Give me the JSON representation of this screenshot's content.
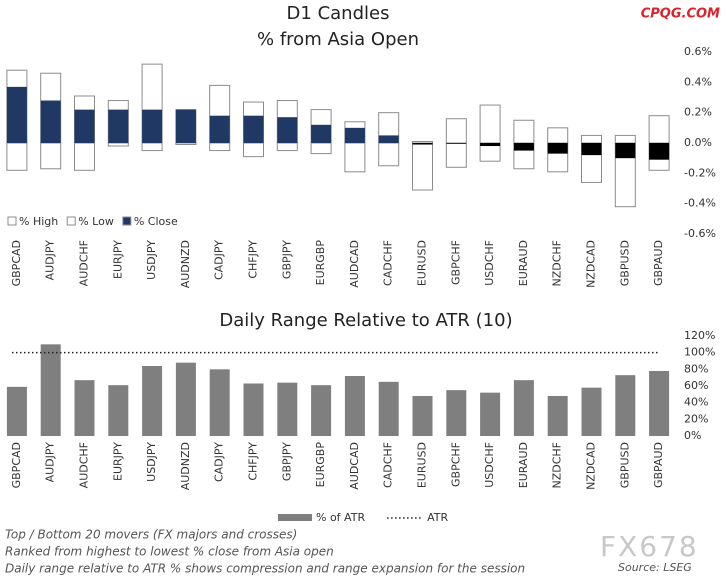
{
  "chart_data": [
    {
      "type": "candle",
      "title": "D1 Candles",
      "subtitle": "% from Asia Open",
      "categories": [
        "GBPCAD",
        "AUDJPY",
        "AUDCHF",
        "EURJPY",
        "USDJPY",
        "AUDNZD",
        "CADJPY",
        "CHFJPY",
        "GBPJPY",
        "EURGBP",
        "AUDCAD",
        "CADCHF",
        "EURUSD",
        "GBPCHF",
        "USDCHF",
        "EURAUD",
        "NZDCHF",
        "NZDCAD",
        "GBPUSD",
        "GBPAUD"
      ],
      "series": [
        {
          "name": "% High",
          "color": "#ffffff",
          "values": [
            0.48,
            0.46,
            0.31,
            0.28,
            0.52,
            0.22,
            0.38,
            0.27,
            0.28,
            0.22,
            0.14,
            0.2,
            0.01,
            0.16,
            0.25,
            0.15,
            0.1,
            0.05,
            0.05,
            0.18
          ]
        },
        {
          "name": "% Low",
          "color": "#ffffff",
          "values": [
            -0.18,
            -0.17,
            -0.18,
            -0.02,
            -0.05,
            -0.01,
            -0.05,
            -0.09,
            -0.05,
            -0.07,
            -0.19,
            -0.15,
            -0.31,
            -0.16,
            -0.12,
            -0.17,
            -0.19,
            -0.26,
            -0.42,
            -0.18
          ]
        },
        {
          "name": "% Close",
          "color": "#1f3864",
          "negative_color": "#000000",
          "values": [
            0.37,
            0.28,
            0.22,
            0.22,
            0.22,
            0.22,
            0.18,
            0.18,
            0.17,
            0.12,
            0.1,
            0.05,
            -0.01,
            0.0,
            -0.02,
            -0.05,
            -0.07,
            -0.08,
            -0.1,
            -0.11
          ]
        }
      ],
      "ylim": [
        -0.6,
        0.6
      ],
      "yticks": [
        {
          "value": 0.6,
          "label": "0.6%"
        },
        {
          "value": 0.4,
          "label": "0.4%"
        },
        {
          "value": 0.2,
          "label": "0.2%"
        },
        {
          "value": 0,
          "label": "0.0%"
        },
        {
          "value": -0.2,
          "label": "-0.2%"
        },
        {
          "value": -0.4,
          "label": "-0.4%"
        },
        {
          "value": -0.6,
          "label": "-0.6%"
        }
      ]
    },
    {
      "type": "bar",
      "title": "Daily Range Relative to ATR (10)",
      "categories": [
        "GBPCAD",
        "AUDJPY",
        "AUDCHF",
        "EURJPY",
        "USDJPY",
        "AUDNZD",
        "CADJPY",
        "CHFJPY",
        "GBPJPY",
        "EURGBP",
        "AUDCAD",
        "CADCHF",
        "EURUSD",
        "GBPCHF",
        "USDCHF",
        "EURAUD",
        "NZDCHF",
        "NZDCAD",
        "GBPUSD",
        "GBPAUD"
      ],
      "series": [
        {
          "name": "% of ATR",
          "color": "#7f7f7f",
          "values": [
            59,
            110,
            67,
            61,
            84,
            88,
            80,
            63,
            64,
            61,
            72,
            65,
            48,
            55,
            52,
            67,
            48,
            58,
            73,
            78
          ]
        }
      ],
      "reference_line": {
        "name": "ATR",
        "value": 100
      },
      "ylim": [
        0,
        120
      ],
      "yticks": [
        {
          "value": 120,
          "label": "120%"
        },
        {
          "value": 100,
          "label": "100%"
        },
        {
          "value": 80,
          "label": "80%"
        },
        {
          "value": 60,
          "label": "60%"
        },
        {
          "value": 40,
          "label": "40%"
        },
        {
          "value": 20,
          "label": "20%"
        },
        {
          "value": 0,
          "label": "0%"
        }
      ]
    }
  ],
  "brand": "CPQG.COM",
  "notes": [
    "Top / Bottom 20 movers (FX majors and crosses)",
    "Ranked from highest to lowest % close from Asia open",
    "Daily range relative to ATR % shows compression and range expansion for the session"
  ],
  "watermark": "FX678",
  "source": "Source: LSEG"
}
